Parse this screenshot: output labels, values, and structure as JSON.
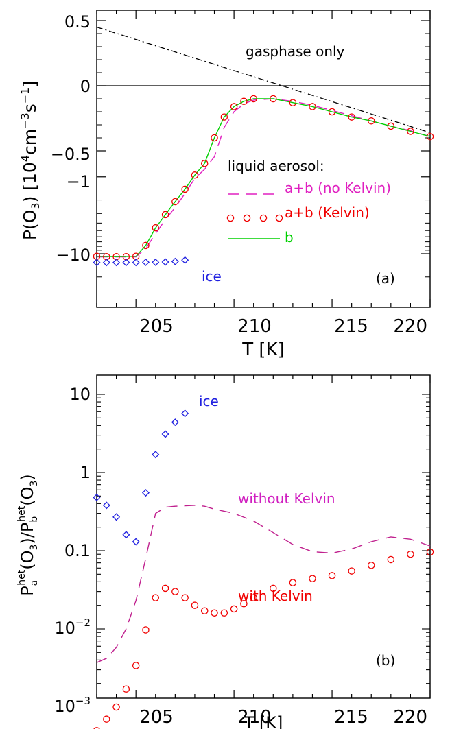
{
  "chart_data": [
    {
      "type": "line",
      "panel_label": "(a)",
      "xlabel": "T [K]",
      "ylabel": "P(O3) [10^4 cm^-3 s^-1]",
      "xlim": [
        203,
        220
      ],
      "y_scale": "sign-log (linear near zero, logarithmic magnitude for negative values)",
      "x_ticks": [
        "205",
        "210",
        "215",
        "220"
      ],
      "y_ticks": [
        "0.5",
        "0",
        "−0.5",
        "−1",
        "−10"
      ],
      "grid": false,
      "annotations": {
        "gas": "gasphase only",
        "liquid": "liquid aerosol:",
        "ice": "ice"
      },
      "legend": [
        {
          "label": "a+b (no Kelvin)",
          "style": "dashed",
          "color": "#e020c0"
        },
        {
          "label": "a+b (Kelvin)",
          "style": "circles",
          "color": "#f00000"
        },
        {
          "label": "b",
          "style": "solid",
          "color": "#00d000"
        }
      ],
      "series": [
        {
          "name": "gasphase only",
          "style": "dashdot",
          "color": "#000000",
          "x": [
            203,
            220
          ],
          "y": [
            0.45,
            -0.36
          ]
        },
        {
          "name": "a+b (no Kelvin)",
          "style": "dashed",
          "color": "#e020c0",
          "x": [
            203,
            204,
            205,
            205.5,
            206,
            206.5,
            207,
            207.5,
            208,
            208.5,
            209,
            209.5,
            210,
            210.5,
            211,
            212,
            213,
            214,
            215,
            216,
            217,
            218,
            219,
            220
          ],
          "y": [
            -11,
            -11,
            -11,
            -8.5,
            -5.5,
            -3.6,
            -2.5,
            -1.65,
            -1.05,
            -0.8,
            -0.55,
            -0.32,
            -0.2,
            -0.14,
            -0.11,
            -0.1,
            -0.12,
            -0.15,
            -0.19,
            -0.23,
            -0.27,
            -0.31,
            -0.345,
            -0.39
          ]
        },
        {
          "name": "a+b (Kelvin)",
          "style": "circles",
          "color": "#f00000",
          "x": [
            203,
            203.5,
            204,
            204.5,
            205,
            205.5,
            206,
            206.5,
            207,
            207.5,
            208,
            208.5,
            209,
            209.5,
            210,
            210.5,
            211,
            212,
            213,
            214,
            215,
            216,
            217,
            218,
            219,
            220
          ],
          "y": [
            -10.8,
            -10.9,
            -10.9,
            -10.9,
            -10.8,
            -7.8,
            -4.6,
            -3.1,
            -2.1,
            -1.45,
            -0.95,
            -0.67,
            -0.4,
            -0.24,
            -0.16,
            -0.12,
            -0.1,
            -0.1,
            -0.13,
            -0.16,
            -0.2,
            -0.24,
            -0.27,
            -0.31,
            -0.35,
            -0.39
          ]
        },
        {
          "name": "b",
          "style": "solid",
          "color": "#00d000",
          "x": [
            203,
            204,
            205,
            205.5,
            206,
            206.5,
            207,
            207.5,
            208,
            208.5,
            209,
            209.5,
            210,
            210.5,
            211,
            212,
            213,
            214,
            215,
            216,
            217,
            218,
            219,
            220
          ],
          "y": [
            -10.8,
            -10.9,
            -10.8,
            -7.8,
            -4.6,
            -3.1,
            -2.1,
            -1.45,
            -0.95,
            -0.67,
            -0.4,
            -0.24,
            -0.16,
            -0.12,
            -0.1,
            -0.1,
            -0.13,
            -0.16,
            -0.2,
            -0.24,
            -0.27,
            -0.31,
            -0.35,
            -0.39
          ]
        },
        {
          "name": "ice",
          "style": "diamonds",
          "color": "#2020e0",
          "x": [
            203,
            203.5,
            204,
            204.5,
            205,
            205.5,
            206,
            206.5,
            207,
            207.5
          ],
          "y": [
            -13,
            -13,
            -13,
            -13,
            -13,
            -12.9,
            -12.9,
            -12.8,
            -12.6,
            -12.1
          ]
        }
      ]
    },
    {
      "type": "line",
      "panel_label": "(b)",
      "xlabel": "T [K]",
      "ylabel": "P_a^het(O3)/P_b^het(O3)",
      "xlim": [
        203,
        220
      ],
      "ylim": [
        0.0002,
        20
      ],
      "y_scale": "log",
      "x_ticks": [
        "205",
        "210",
        "215",
        "220"
      ],
      "y_ticks": [
        "10",
        "1",
        "0.1",
        "10^-2",
        "10^-3"
      ],
      "grid": false,
      "annotations": {
        "ice": "ice",
        "without": "without Kelvin",
        "with": "with Kelvin"
      },
      "series": [
        {
          "name": "ice",
          "style": "diamonds",
          "color": "#2020e0",
          "x": [
            203,
            203.5,
            204,
            204.5,
            205,
            205.5,
            206,
            206.5,
            207,
            207.5
          ],
          "y": [
            0.48,
            0.38,
            0.27,
            0.16,
            0.13,
            0.55,
            1.7,
            3.1,
            4.4,
            5.7
          ]
        },
        {
          "name": "without Kelvin",
          "style": "dashed",
          "color": "#c0208e",
          "x": [
            203,
            203.5,
            204,
            204.5,
            205,
            205.5,
            206,
            206.5,
            207,
            207.5,
            208,
            208.5,
            209,
            210,
            211,
            212,
            213,
            214,
            215,
            216,
            217,
            218,
            219,
            220
          ],
          "y": [
            0.0037,
            0.0042,
            0.0058,
            0.01,
            0.023,
            0.08,
            0.3,
            0.36,
            0.37,
            0.375,
            0.38,
            0.37,
            0.34,
            0.3,
            0.24,
            0.17,
            0.12,
            0.097,
            0.093,
            0.105,
            0.13,
            0.15,
            0.14,
            0.115
          ]
        },
        {
          "name": "with Kelvin",
          "style": "circles",
          "color": "#f00000",
          "x": [
            203,
            203.5,
            204,
            204.5,
            205,
            205.5,
            206,
            206.5,
            207,
            207.5,
            208,
            208.5,
            209,
            209.5,
            210,
            210.5,
            211,
            212,
            213,
            214,
            215,
            216,
            217,
            218,
            219,
            220
          ],
          "y": [
            0.0005,
            0.0007,
            0.001,
            0.0017,
            0.0034,
            0.0097,
            0.025,
            0.033,
            0.03,
            0.025,
            0.02,
            0.017,
            0.016,
            0.016,
            0.018,
            0.021,
            0.025,
            0.033,
            0.039,
            0.044,
            0.048,
            0.055,
            0.065,
            0.077,
            0.09,
            0.096
          ]
        }
      ]
    }
  ]
}
